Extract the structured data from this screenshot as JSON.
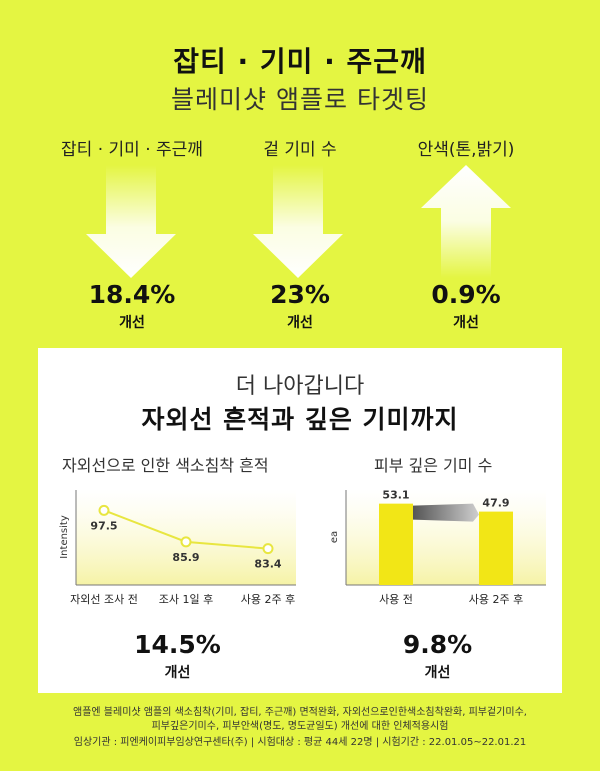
{
  "header": {
    "title_main": "잡티 · 기미 · 주근깨",
    "title_sub": "블레미샷 앰플로 타겟팅"
  },
  "improvements": [
    {
      "label": "잡티 · 기미 · 주근깨",
      "value": "18.4%",
      "sub": "개선",
      "direction": "down"
    },
    {
      "label": "겉 기미 수",
      "value": "23%",
      "sub": "개선",
      "direction": "down"
    },
    {
      "label": "안색(톤,밝기)",
      "value": "0.9%",
      "sub": "개선",
      "direction": "up"
    }
  ],
  "section": {
    "heading_light": "더 나아갑니다",
    "heading_bold": "자외선 흔적과 깊은 기미까지"
  },
  "line_chart": {
    "title": "자외선으로 인한 색소침착 흔적",
    "result_value": "14.5%",
    "result_sub": "개선"
  },
  "bar_chart": {
    "title": "피부 깊은 기미 수",
    "result_value": "9.8%",
    "result_sub": "개선"
  },
  "chart_data": [
    {
      "type": "line",
      "title": "자외선으로 인한 색소침착 흔적",
      "ylabel": "Intensity",
      "categories": [
        "자외선 조사 전",
        "조사 1일 후",
        "사용 2주 후"
      ],
      "values": [
        97.5,
        85.9,
        83.4
      ],
      "ylim": [
        70,
        105
      ],
      "color": "#e8e640"
    },
    {
      "type": "bar",
      "title": "피부 깊은 기미 수",
      "ylabel": "ea",
      "categories": [
        "사용 전",
        "사용 2주 후"
      ],
      "values": [
        53.1,
        47.9
      ],
      "ylim": [
        0,
        62
      ],
      "color": "#f2e616"
    }
  ],
  "footer": {
    "line1": "앰플엔 블레미샷 앰플의 색소침착(기미, 잡티, 주근깨) 면적완화, 자외선으로인한색소침착완화, 피부겉기미수,",
    "line2": "피부깊은기미수, 피부안색(명도, 명도균일도) 개선에 대한 인체적용시험",
    "line3": "임상기관 : 피엔케이피부임상연구센타(주)  |  시험대상 : 평균 44세 22명  |  시험기간 : 22.01.05~22.01.21"
  },
  "colors": {
    "background": "#e4f542",
    "panel": "#ffffff",
    "accent": "#f2e616"
  }
}
